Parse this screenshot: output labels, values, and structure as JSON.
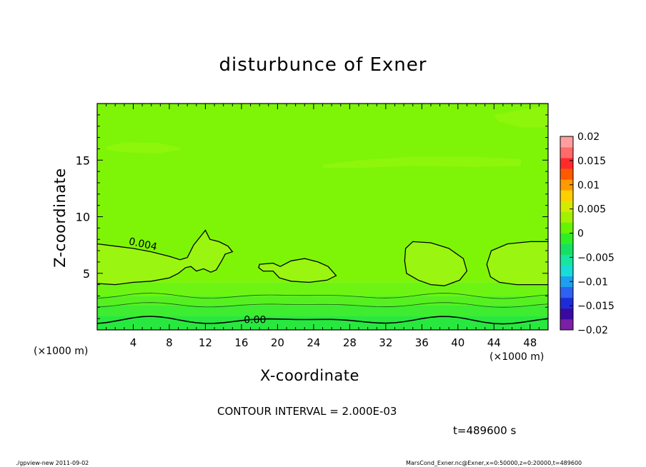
{
  "header": {
    "title": "disturbunce of Exner"
  },
  "chart_data": {
    "type": "heatmap",
    "title": "disturbunce of Exner",
    "xlabel": "X-coordinate",
    "ylabel": "Z-coordinate",
    "x_unit": "(×1000 m)",
    "xlim": [
      0,
      50
    ],
    "ylim": [
      0,
      20
    ],
    "x_ticks": [
      4,
      8,
      12,
      16,
      20,
      24,
      28,
      32,
      36,
      40,
      44,
      48
    ],
    "y_ticks": [
      5,
      10,
      15
    ],
    "colorbar": {
      "range": [
        -0.02,
        0.02
      ],
      "tick_labels": [
        "0.02",
        "0.015",
        "0.01",
        "0.005",
        "0",
        "−0.005",
        "−0.01",
        "−0.015",
        "−0.02"
      ],
      "colors": [
        "#7a1fa6",
        "#3a0aa0",
        "#1e2cd8",
        "#2e62f0",
        "#1ea0f0",
        "#18dcd8",
        "#16e6a0",
        "#16e064",
        "#30ee24",
        "#66f500",
        "#a4f000",
        "#d6ea00",
        "#ffcf00",
        "#ff9a00",
        "#ff5a00",
        "#ff2a2a",
        "#ff6a6a",
        "#ff9e9e"
      ]
    },
    "background_levels": [
      {
        "z_from": 0.0,
        "z_to": 1.2,
        "value": -0.001,
        "color": "#28e840"
      },
      {
        "z_from": 1.2,
        "z_to": 2.2,
        "value": 0.0,
        "color": "#3eec30"
      },
      {
        "z_from": 2.2,
        "z_to": 3.0,
        "value": 0.001,
        "color": "#56f020"
      },
      {
        "z_from": 3.0,
        "z_to": 4.2,
        "value": 0.002,
        "color": "#6ef412"
      },
      {
        "z_from": 4.2,
        "z_to": 20.0,
        "value": 0.003,
        "color": "#7ef506"
      }
    ],
    "contour_labels": [
      {
        "text": "0.004",
        "x": 5.0,
        "z": 7.3,
        "angle": 12
      },
      {
        "text": "0.00",
        "x": 17.5,
        "z": 0.6,
        "angle": 0
      }
    ],
    "contour_interval_label": "CONTOUR INTERVAL = 2.000E-03",
    "time_label": "t=489600 s"
  },
  "footer": {
    "left": "./gpview-new   2011-09-02",
    "right": "MarsCond_Exner.nc@Exner,x=0:50000,z=0:20000,t=489600"
  }
}
